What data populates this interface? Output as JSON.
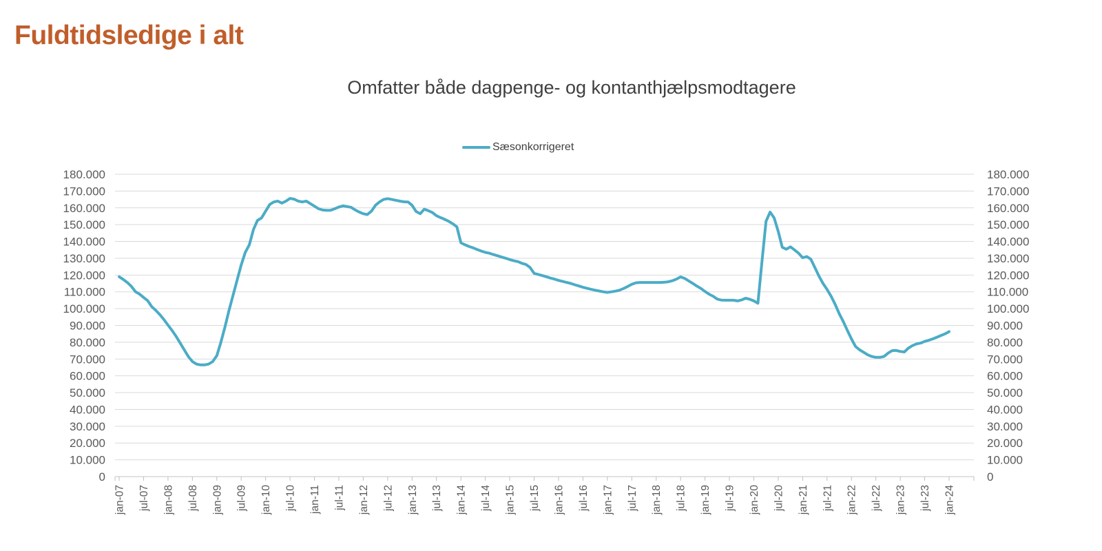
{
  "header": {
    "title": "Fuldtidsledige i alt"
  },
  "chart_data": {
    "type": "line",
    "title": "Fuldtidsledige i alt",
    "subtitle": "Omfatter både dagpenge- og kontanthjælpsmodtagere",
    "legend": {
      "label": "Sæsonkorrigeret",
      "position": "top-center"
    },
    "grid": "horizontal",
    "ylim": [
      0,
      180000
    ],
    "y_tick_step": 10000,
    "y_tick_labels": [
      "0",
      "10.000",
      "20.000",
      "30.000",
      "40.000",
      "50.000",
      "60.000",
      "70.000",
      "80.000",
      "90.000",
      "100.000",
      "110.000",
      "120.000",
      "130.000",
      "140.000",
      "150.000",
      "160.000",
      "170.000",
      "180.000"
    ],
    "x_tick_labels": [
      "jan-07",
      "jul-07",
      "jan-08",
      "jul-08",
      "jan-09",
      "jul-09",
      "jan-10",
      "jul-10",
      "jan-11",
      "jul-11",
      "jan-12",
      "jul-12",
      "jan-13",
      "jul-13",
      "jan-14",
      "jul-14",
      "jan-15",
      "jul-15",
      "jan-16",
      "jul-16",
      "jan-17",
      "jul-17",
      "jan-18",
      "jul-18",
      "jan-19",
      "jul-19",
      "jan-20",
      "jul-20",
      "jan-21",
      "jul-21",
      "jan-22",
      "jul-22",
      "jan-23",
      "jul-23",
      "jan-24"
    ],
    "x_interval": "monthly",
    "x_start": "jan-07",
    "x_end": "jan-24",
    "series": [
      {
        "name": "Sæsonkorrigeret",
        "color": "#4BACC6",
        "values": [
          119000,
          117400,
          115600,
          113300,
          110100,
          108700,
          106700,
          104800,
          101200,
          99000,
          96400,
          93500,
          90200,
          87000,
          83500,
          79500,
          75500,
          71500,
          68500,
          67000,
          66500,
          66500,
          67000,
          68500,
          72000,
          80000,
          89000,
          99000,
          108000,
          117000,
          126000,
          133500,
          138000,
          147000,
          152500,
          154000,
          158000,
          162000,
          163500,
          164000,
          162800,
          164000,
          165600,
          165200,
          164000,
          163500,
          164000,
          162500,
          161000,
          159500,
          158700,
          158500,
          158600,
          159500,
          160500,
          161200,
          160800,
          160300,
          158800,
          157500,
          156500,
          156000,
          158000,
          161500,
          163500,
          165000,
          165500,
          165000,
          164500,
          164000,
          163600,
          163500,
          161500,
          157800,
          156500,
          159200,
          158300,
          157200,
          155300,
          154200,
          153200,
          152000,
          150500,
          148700,
          139200,
          138000,
          137000,
          136200,
          135200,
          134300,
          133500,
          133000,
          132200,
          131500,
          130700,
          130000,
          129200,
          128500,
          128000,
          127000,
          126300,
          124500,
          121000,
          120400,
          119700,
          119000,
          118200,
          117600,
          116800,
          116200,
          115600,
          115000,
          114200,
          113500,
          112700,
          112100,
          111500,
          111000,
          110500,
          110000,
          109700,
          110000,
          110400,
          111000,
          112000,
          113200,
          114500,
          115400,
          115600,
          115600,
          115600,
          115600,
          115600,
          115600,
          115700,
          116000,
          116600,
          117600,
          118900,
          118000,
          116500,
          115000,
          113400,
          112000,
          110200,
          108600,
          107400,
          105700,
          105100,
          105000,
          105000,
          105000,
          104600,
          105200,
          106200,
          105600,
          104600,
          103200,
          128000,
          152000,
          157500,
          154000,
          146000,
          136500,
          135400,
          136800,
          135000,
          133000,
          130300,
          131000,
          129500,
          124500,
          119400,
          115000,
          111400,
          107400,
          102500,
          97000,
          92300,
          87000,
          82000,
          77500,
          75500,
          74000,
          72500,
          71500,
          71000,
          71000,
          71500,
          73500,
          75000,
          75100,
          74500,
          74200,
          76500,
          78000,
          79000,
          79500,
          80500,
          81200,
          82000,
          83000,
          84000,
          85000,
          86300
        ]
      }
    ],
    "colors": {
      "line": "#4BACC6",
      "title": "#C05E2B",
      "subtitle_text": "#3F3F3F",
      "grid": "#D9D9D9",
      "axis": "#C3C3C3",
      "tick": "#BFBFBF",
      "tick_label": "#595959",
      "legend_text": "#404040"
    }
  }
}
